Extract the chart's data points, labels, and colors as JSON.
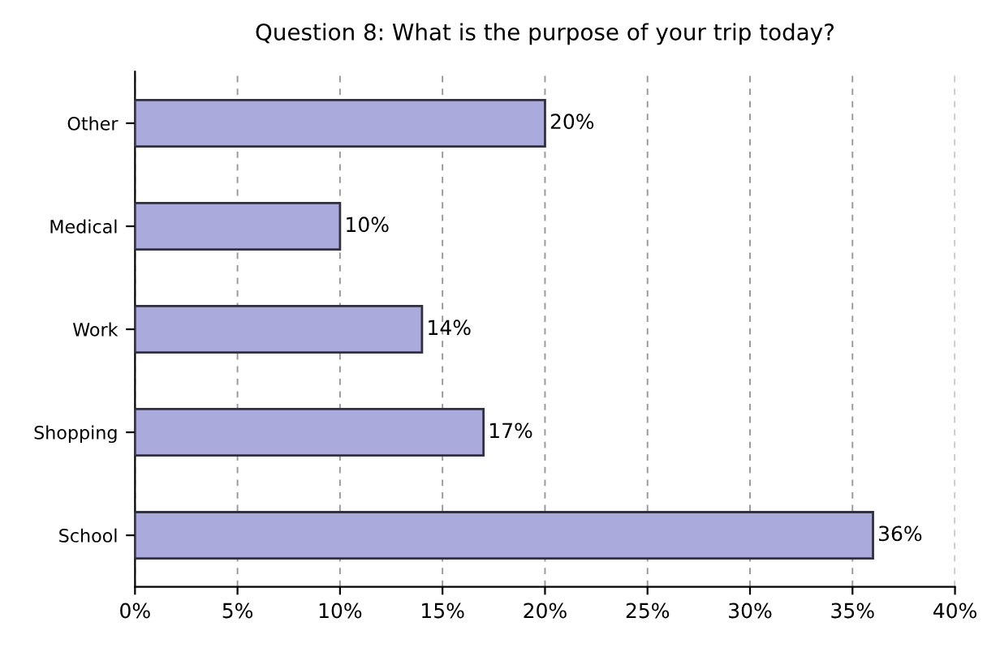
{
  "chart_data": {
    "type": "bar",
    "orientation": "horizontal",
    "title": "Question 8: What is the purpose of your trip today?",
    "categories": [
      "Other",
      "Medical",
      "Work",
      "Shopping",
      "School"
    ],
    "values": [
      20,
      10,
      14,
      17,
      36
    ],
    "value_labels": [
      "20%",
      "10%",
      "14%",
      "17%",
      "36%"
    ],
    "color": "#aaaadc",
    "xlim": [
      0,
      40
    ],
    "xticks": [
      {
        "value": 0,
        "label": "0%"
      },
      {
        "value": 5,
        "label": "5%"
      },
      {
        "value": 10,
        "label": "10%"
      },
      {
        "value": 15,
        "label": "15%"
      },
      {
        "value": 20,
        "label": "20%"
      },
      {
        "value": 25,
        "label": "25%"
      },
      {
        "value": 30,
        "label": "30%"
      },
      {
        "value": 35,
        "label": "35%"
      },
      {
        "value": 40,
        "label": "40%"
      }
    ],
    "grid": "x"
  }
}
